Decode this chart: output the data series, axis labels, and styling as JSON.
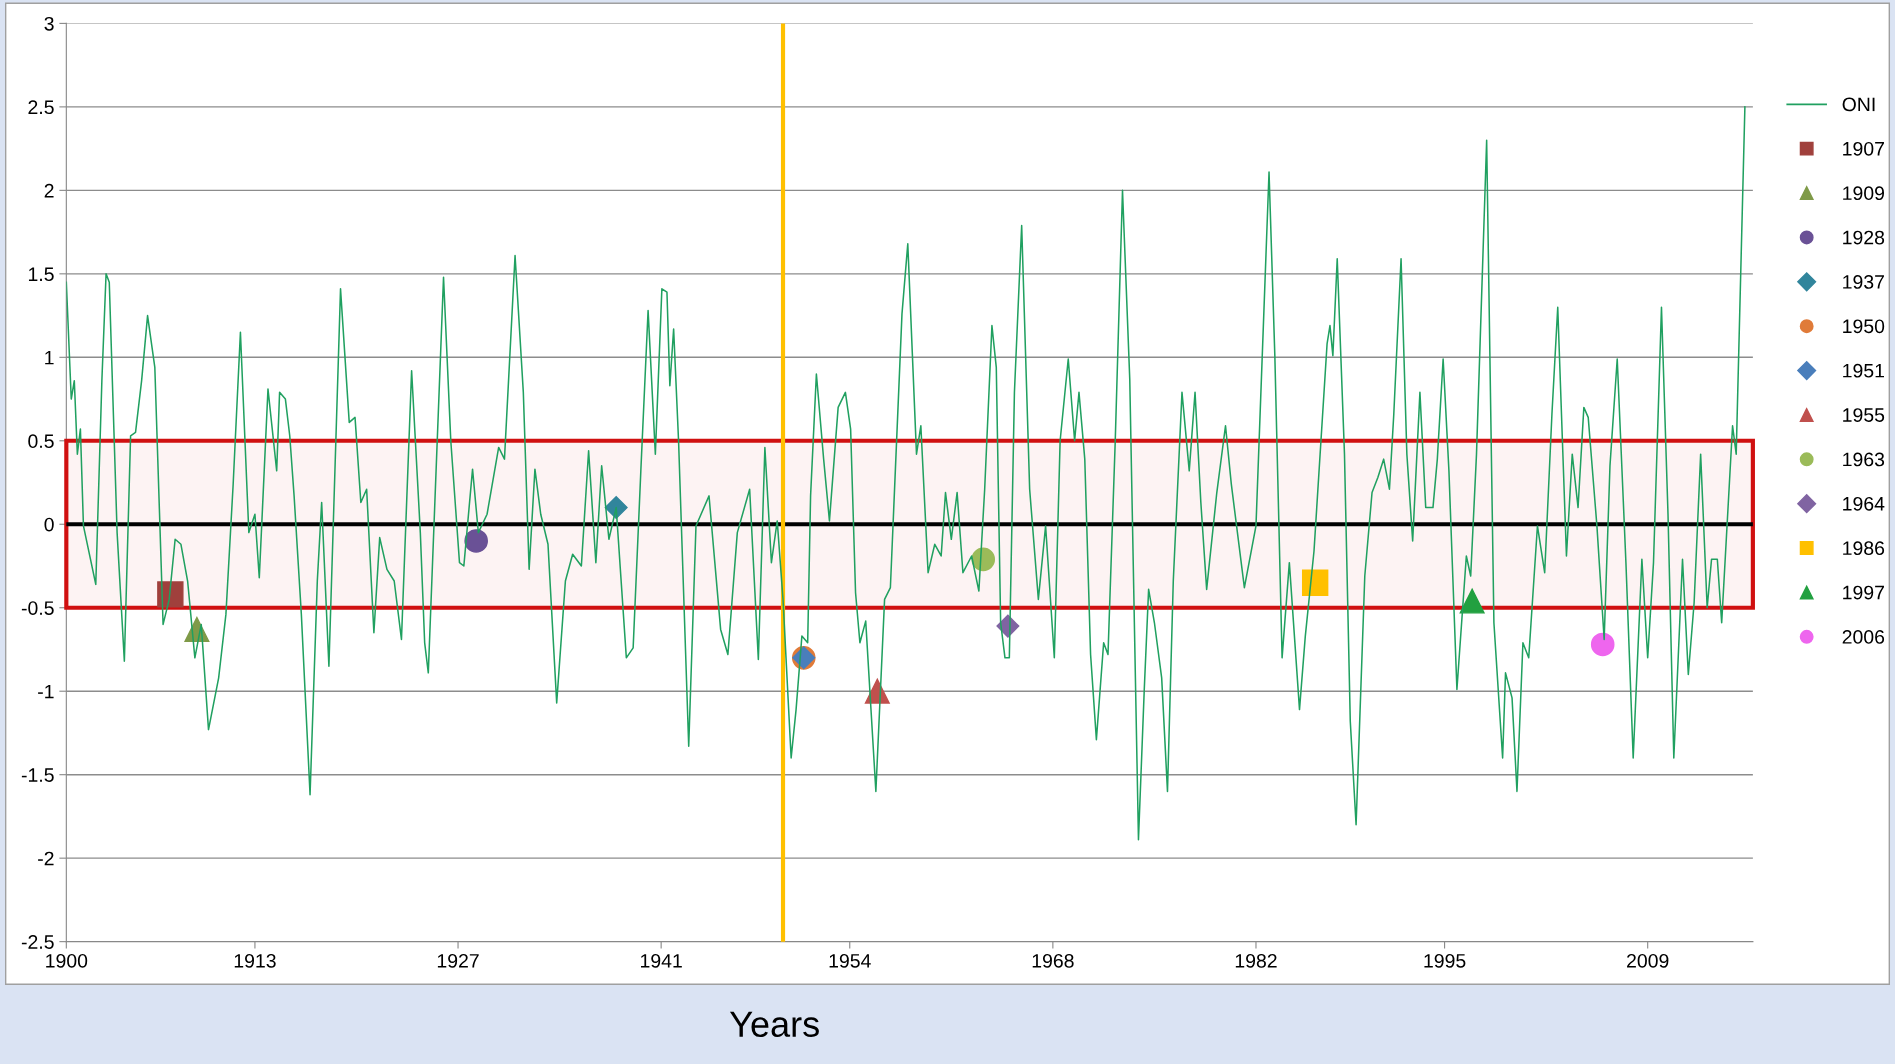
{
  "chart_data": {
    "type": "line",
    "xlabel": "Years",
    "xlim": [
      1900,
      2016.25
    ],
    "ylim": [
      -2.5,
      3
    ],
    "xticks": [
      1900,
      1913,
      1927,
      1941,
      1954,
      1968,
      1982,
      1995,
      2009
    ],
    "yticks": [
      -2.5,
      -2,
      -1.5,
      -1,
      -0.5,
      0,
      0.5,
      1,
      1.5,
      2,
      2.5,
      3
    ],
    "grid": "y",
    "legend": "right",
    "ref_lines": [
      {
        "axis": "y",
        "value": 0,
        "color": "#000000"
      },
      {
        "axis": "x",
        "value": 1949.4,
        "color": "#ffc000"
      }
    ],
    "bands": [
      {
        "axis": "y",
        "from": -0.5,
        "to": 0.5,
        "color": "#d01010"
      }
    ],
    "series": [
      {
        "name": "ONI",
        "color": "#20a060",
        "marker": "none",
        "x": [
          1900.0,
          1900.34,
          1900.55,
          1900.76,
          1900.97,
          1901.18,
          1902.03,
          1902.45,
          1902.74,
          1902.96,
          1903.5,
          1904.0,
          1904.43,
          1904.77,
          1905.19,
          1905.6,
          1906.1,
          1906.67,
          1907.09,
          1907.5,
          1907.9,
          1908.36,
          1908.86,
          1909.3,
          1909.8,
          1910.5,
          1911.0,
          1911.5,
          1912.0,
          1912.58,
          1913.0,
          1913.3,
          1913.9,
          1914.5,
          1914.7,
          1915.1,
          1915.4,
          1915.7,
          1916.2,
          1916.8,
          1917.3,
          1917.6,
          1918.1,
          1918.9,
          1919.5,
          1919.9,
          1920.3,
          1920.7,
          1921.2,
          1921.6,
          1922.1,
          1922.6,
          1923.1,
          1923.8,
          1924.4,
          1924.7,
          1924.95,
          1926.0,
          1926.5,
          1927.1,
          1927.4,
          1928.0,
          1928.4,
          1929.0,
          1929.8,
          1930.2,
          1930.93,
          1931.5,
          1931.9,
          1932.3,
          1932.7,
          1933.2,
          1933.8,
          1934.4,
          1934.9,
          1935.5,
          1936.0,
          1936.5,
          1936.9,
          1937.4,
          1937.9,
          1938.6,
          1939.07,
          1939.6,
          1940.1,
          1940.6,
          1941.05,
          1941.4,
          1941.6,
          1941.86,
          1942.2,
          1942.9,
          1943.4,
          1944.3,
          1945.1,
          1945.6,
          1946.25,
          1947.1,
          1947.7,
          1948.15,
          1948.6,
          1949.0,
          1949.4,
          1949.96,
          1950.3,
          1950.7,
          1951.1,
          1951.3,
          1951.7,
          1952.2,
          1952.6,
          1953.2,
          1953.7,
          1954.06,
          1954.4,
          1954.7,
          1955.1,
          1955.8,
          1956.4,
          1956.8,
          1957.6,
          1958.0,
          1958.6,
          1958.9,
          1959.4,
          1959.86,
          1960.3,
          1960.6,
          1961.0,
          1961.4,
          1961.8,
          1962.4,
          1962.9,
          1963.3,
          1963.8,
          1964.1,
          1964.4,
          1964.7,
          1965.0,
          1965.35,
          1965.85,
          1966.4,
          1967.0,
          1967.5,
          1968.1,
          1968.5,
          1969.06,
          1969.5,
          1969.8,
          1970.2,
          1970.6,
          1971.0,
          1971.5,
          1971.8,
          1972.3,
          1972.8,
          1973.3,
          1973.9,
          1974.3,
          1974.6,
          1975.0,
          1975.5,
          1975.9,
          1976.3,
          1976.9,
          1977.4,
          1977.8,
          1978.2,
          1978.6,
          1979.3,
          1979.9,
          1980.3,
          1981.2,
          1982.0,
          1982.9,
          1983.3,
          1983.8,
          1984.3,
          1985.0,
          1985.4,
          1986.0,
          1986.9,
          1987.1,
          1987.3,
          1987.6,
          1988.1,
          1988.5,
          1988.9,
          1989.5,
          1990.0,
          1990.4,
          1990.8,
          1991.2,
          1991.5,
          1992.0,
          1992.4,
          1992.8,
          1993.3,
          1993.7,
          1994.2,
          1994.5,
          1994.9,
          1995.3,
          1995.85,
          1996.5,
          1996.8,
          1997.2,
          1997.9,
          1998.4,
          1999.0,
          1999.2,
          1999.65,
          1999.99,
          2000.4,
          2000.8,
          2001.4,
          2001.9,
          2002.4,
          2002.8,
          2003.4,
          2003.8,
          2004.2,
          2004.6,
          2004.9,
          2005.5,
          2006.0,
          2006.4,
          2006.9,
          2007.5,
          2008.0,
          2008.6,
          2009.0,
          2009.4,
          2009.95,
          2010.4,
          2010.8,
          2011.4,
          2011.8,
          2012.2,
          2012.65,
          2013.1,
          2013.4,
          2013.8,
          2014.1,
          2014.85,
          2015.1,
          2015.7
        ],
        "values": [
          1.45,
          0.75,
          0.86,
          0.42,
          0.57,
          -0.01,
          -0.36,
          0.86,
          1.5,
          1.45,
          -0.05,
          -0.82,
          0.53,
          0.55,
          0.86,
          1.25,
          0.94,
          -0.6,
          -0.45,
          -0.09,
          -0.12,
          -0.34,
          -0.8,
          -0.6,
          -1.23,
          -0.92,
          -0.54,
          0.24,
          1.15,
          -0.05,
          0.06,
          -0.32,
          0.81,
          0.32,
          0.79,
          0.75,
          0.53,
          0.17,
          -0.54,
          -1.62,
          -0.34,
          0.13,
          -0.85,
          1.41,
          0.61,
          0.64,
          0.13,
          0.21,
          -0.65,
          -0.08,
          -0.27,
          -0.34,
          -0.69,
          0.92,
          -0.05,
          -0.71,
          -0.89,
          1.48,
          0.5,
          -0.23,
          -0.25,
          0.33,
          -0.05,
          0.06,
          0.46,
          0.39,
          1.61,
          0.79,
          -0.27,
          0.33,
          0.06,
          -0.12,
          -1.07,
          -0.34,
          -0.18,
          -0.25,
          0.44,
          -0.23,
          0.35,
          -0.09,
          0.1,
          -0.8,
          -0.74,
          0.32,
          1.28,
          0.42,
          1.41,
          1.39,
          0.83,
          1.17,
          0.5,
          -1.33,
          -0.01,
          0.17,
          -0.63,
          -0.78,
          -0.05,
          0.21,
          -0.81,
          0.46,
          -0.23,
          0.02,
          -0.45,
          -1.4,
          -1.11,
          -0.67,
          -0.71,
          0.17,
          0.9,
          0.39,
          0.02,
          0.7,
          0.79,
          0.57,
          -0.41,
          -0.71,
          -0.58,
          -1.6,
          -0.45,
          -0.38,
          1.26,
          1.68,
          0.42,
          0.59,
          -0.29,
          -0.12,
          -0.19,
          0.19,
          -0.09,
          0.19,
          -0.29,
          -0.19,
          -0.4,
          0.21,
          1.19,
          0.94,
          -0.59,
          -0.8,
          -0.8,
          0.79,
          1.79,
          0.21,
          -0.45,
          -0.01,
          -0.8,
          0.5,
          0.99,
          0.5,
          0.79,
          0.39,
          -0.78,
          -1.29,
          -0.71,
          -0.78,
          0.5,
          2.0,
          0.87,
          -1.89,
          -0.99,
          -0.39,
          -0.59,
          -0.92,
          -1.6,
          -0.34,
          0.79,
          0.32,
          0.79,
          0.13,
          -0.39,
          0.19,
          0.59,
          0.24,
          -0.38,
          -0.01,
          2.11,
          1.01,
          -0.8,
          -0.23,
          -1.11,
          -0.67,
          -0.16,
          1.08,
          1.19,
          1.01,
          1.59,
          0.42,
          -1.18,
          -1.8,
          -0.31,
          0.19,
          0.28,
          0.39,
          0.21,
          0.66,
          1.59,
          0.42,
          -0.1,
          0.79,
          0.1,
          0.1,
          0.39,
          0.99,
          0.32,
          -0.99,
          -0.19,
          -0.31,
          0.42,
          2.3,
          -0.59,
          -1.4,
          -0.89,
          -1.04,
          -1.6,
          -0.71,
          -0.8,
          -0.01,
          -0.29,
          0.66,
          1.3,
          -0.19,
          0.42,
          0.1,
          0.7,
          0.64,
          -0.01,
          -0.69,
          0.35,
          0.99,
          -0.23,
          -1.4,
          -0.21,
          -0.8,
          -0.23,
          1.3,
          0.06,
          -1.4,
          -0.21,
          -0.9,
          -0.47,
          0.42,
          -0.5,
          -0.21,
          -0.21,
          -0.59,
          0.59,
          0.42,
          2.5
        ]
      },
      {
        "name": "1907",
        "type": "scatter",
        "color": "#a0403c",
        "marker": "square",
        "x": [
          1907.17
        ],
        "values": [
          -0.42
        ]
      },
      {
        "name": "1909",
        "type": "scatter",
        "color": "#7f9a48",
        "marker": "triangle",
        "x": [
          1909.0
        ],
        "values": [
          -0.63
        ]
      },
      {
        "name": "1928",
        "type": "scatter",
        "color": "#6a5196",
        "marker": "circle",
        "x": [
          1928.25
        ],
        "values": [
          -0.1
        ]
      },
      {
        "name": "1937",
        "type": "scatter",
        "color": "#31859c",
        "marker": "diamond",
        "x": [
          1937.9
        ],
        "values": [
          0.1
        ]
      },
      {
        "name": "1950",
        "type": "scatter",
        "color": "#e07b39",
        "marker": "circle",
        "x": [
          1950.83
        ],
        "values": [
          -0.8
        ]
      },
      {
        "name": "1951",
        "type": "scatter",
        "color": "#4a7ebb",
        "marker": "diamond",
        "x": [
          1950.83
        ],
        "values": [
          -0.8
        ]
      },
      {
        "name": "1955",
        "type": "scatter",
        "color": "#c0504d",
        "marker": "triangle",
        "x": [
          1955.9
        ],
        "values": [
          -1.0
        ]
      },
      {
        "name": "1963",
        "type": "scatter",
        "color": "#9bbb59",
        "marker": "circle",
        "x": [
          1963.2
        ],
        "values": [
          -0.21
        ]
      },
      {
        "name": "1964",
        "type": "scatter",
        "color": "#8064a2",
        "marker": "diamond",
        "x": [
          1964.9
        ],
        "values": [
          -0.61
        ]
      },
      {
        "name": "1986",
        "type": "scatter",
        "color": "#ffc000",
        "marker": "square",
        "x": [
          1986.08
        ],
        "values": [
          -0.35
        ]
      },
      {
        "name": "1997",
        "type": "scatter",
        "color": "#22a040",
        "marker": "triangle",
        "x": [
          1996.9
        ],
        "values": [
          -0.46
        ]
      },
      {
        "name": "2006",
        "type": "scatter",
        "color": "#ee66ee",
        "marker": "circle",
        "x": [
          2005.9
        ],
        "values": [
          -0.72
        ]
      }
    ]
  }
}
